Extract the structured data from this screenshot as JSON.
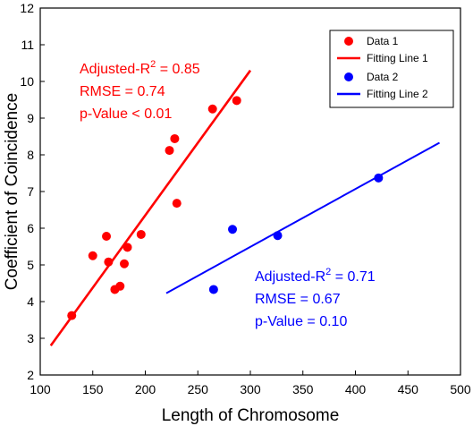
{
  "chart_data": {
    "type": "scatter",
    "xlabel": "Length of Chromosome",
    "ylabel": "Coefficient of Coincidence",
    "xlim": [
      100,
      500
    ],
    "ylim": [
      2,
      12
    ],
    "xticks": [
      100,
      150,
      200,
      250,
      300,
      350,
      400,
      450,
      500
    ],
    "yticks": [
      2,
      3,
      4,
      5,
      6,
      7,
      8,
      9,
      10,
      11,
      12
    ],
    "grid": false,
    "legend_position": "top-right",
    "series": [
      {
        "name": "Data 1",
        "color": "#ff0000",
        "points": [
          [
            130,
            3.62
          ],
          [
            150,
            5.25
          ],
          [
            163,
            5.78
          ],
          [
            165,
            5.08
          ],
          [
            171,
            4.33
          ],
          [
            176,
            4.42
          ],
          [
            180,
            5.03
          ],
          [
            183,
            5.48
          ],
          [
            196,
            5.83
          ],
          [
            223,
            8.12
          ],
          [
            228,
            8.44
          ],
          [
            230,
            6.68
          ],
          [
            264,
            9.25
          ],
          [
            287,
            9.48
          ]
        ],
        "fit_name": "Fitting Line 1",
        "fit_line": [
          [
            110,
            2.8
          ],
          [
            300,
            10.3
          ]
        ]
      },
      {
        "name": "Data 2",
        "color": "#0000ff",
        "points": [
          [
            265,
            4.33
          ],
          [
            283,
            5.97
          ],
          [
            326,
            5.8
          ],
          [
            422,
            7.37
          ]
        ],
        "fit_name": "Fitting Line 2",
        "fit_line": [
          [
            220,
            4.23
          ],
          [
            480,
            8.33
          ]
        ]
      }
    ],
    "annotations": [
      {
        "series": 0,
        "color": "#ff0000",
        "r2_label": "Adjusted-R",
        "r2_sup": "2",
        "r2_value": " = 0.85",
        "rmse": "RMSE = 0.74",
        "pvalue": "p-Value < 0.01"
      },
      {
        "series": 1,
        "color": "#0000ff",
        "r2_label": "Adjusted-R",
        "r2_sup": "2",
        "r2_value": " = 0.71",
        "rmse": "RMSE = 0.67",
        "pvalue": "p-Value = 0.10"
      }
    ]
  }
}
